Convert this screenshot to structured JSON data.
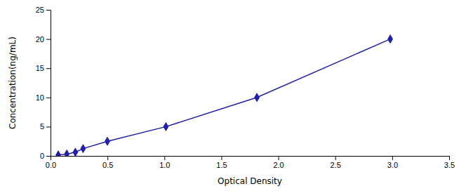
{
  "chart_data": {
    "type": "line",
    "x": [
      0.068,
      0.143,
      0.218,
      0.286,
      0.499,
      1.013,
      1.812,
      2.983
    ],
    "values": [
      0.156,
      0.312,
      0.625,
      1.25,
      2.5,
      5.0,
      10.0,
      20.0
    ],
    "color": "#1F1FA8",
    "marker": "diamond",
    "xlabel": "Optical Density",
    "ylabel": "Concentration(ng/mL)",
    "xlim": [
      0,
      3.5
    ],
    "ylim": [
      0,
      25
    ],
    "xticks": [
      {
        "value": 0,
        "label": "0.0"
      },
      0.5,
      {
        "value": 1.0,
        "label": "1.0"
      },
      1.5,
      {
        "value": 2.0,
        "label": "2.0"
      },
      2.5,
      {
        "value": 3.0,
        "label": "3.0"
      },
      3.5
    ],
    "yticks": [
      0,
      5,
      10,
      15,
      20,
      25
    ],
    "grid": false
  }
}
